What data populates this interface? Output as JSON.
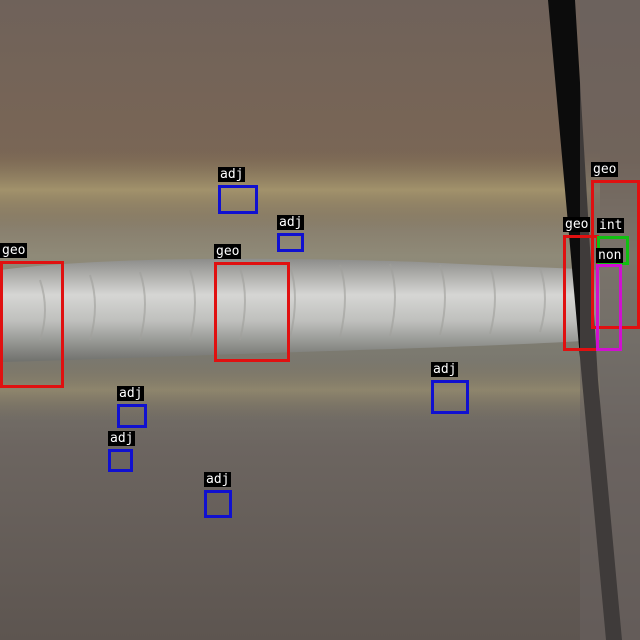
{
  "image": {
    "description_colors": {
      "metal_top": "#6e6158",
      "metal_bottom": "#5e5650",
      "weld_bead": "#c8c8c6",
      "groove_line": "#0c0c0c"
    }
  },
  "class_colors": {
    "geo": "#e01010",
    "adj": "#1010d0",
    "int": "#10c010",
    "non": "#d010d0"
  },
  "detections": [
    {
      "label": "geo"
    },
    {
      "label": "geo"
    },
    {
      "label": "geo"
    },
    {
      "label": "geo"
    },
    {
      "label": "int"
    },
    {
      "label": "non"
    },
    {
      "label": "adj"
    },
    {
      "label": "adj"
    },
    {
      "label": "adj"
    },
    {
      "label": "adj"
    },
    {
      "label": "adj"
    },
    {
      "label": "adj"
    }
  ]
}
